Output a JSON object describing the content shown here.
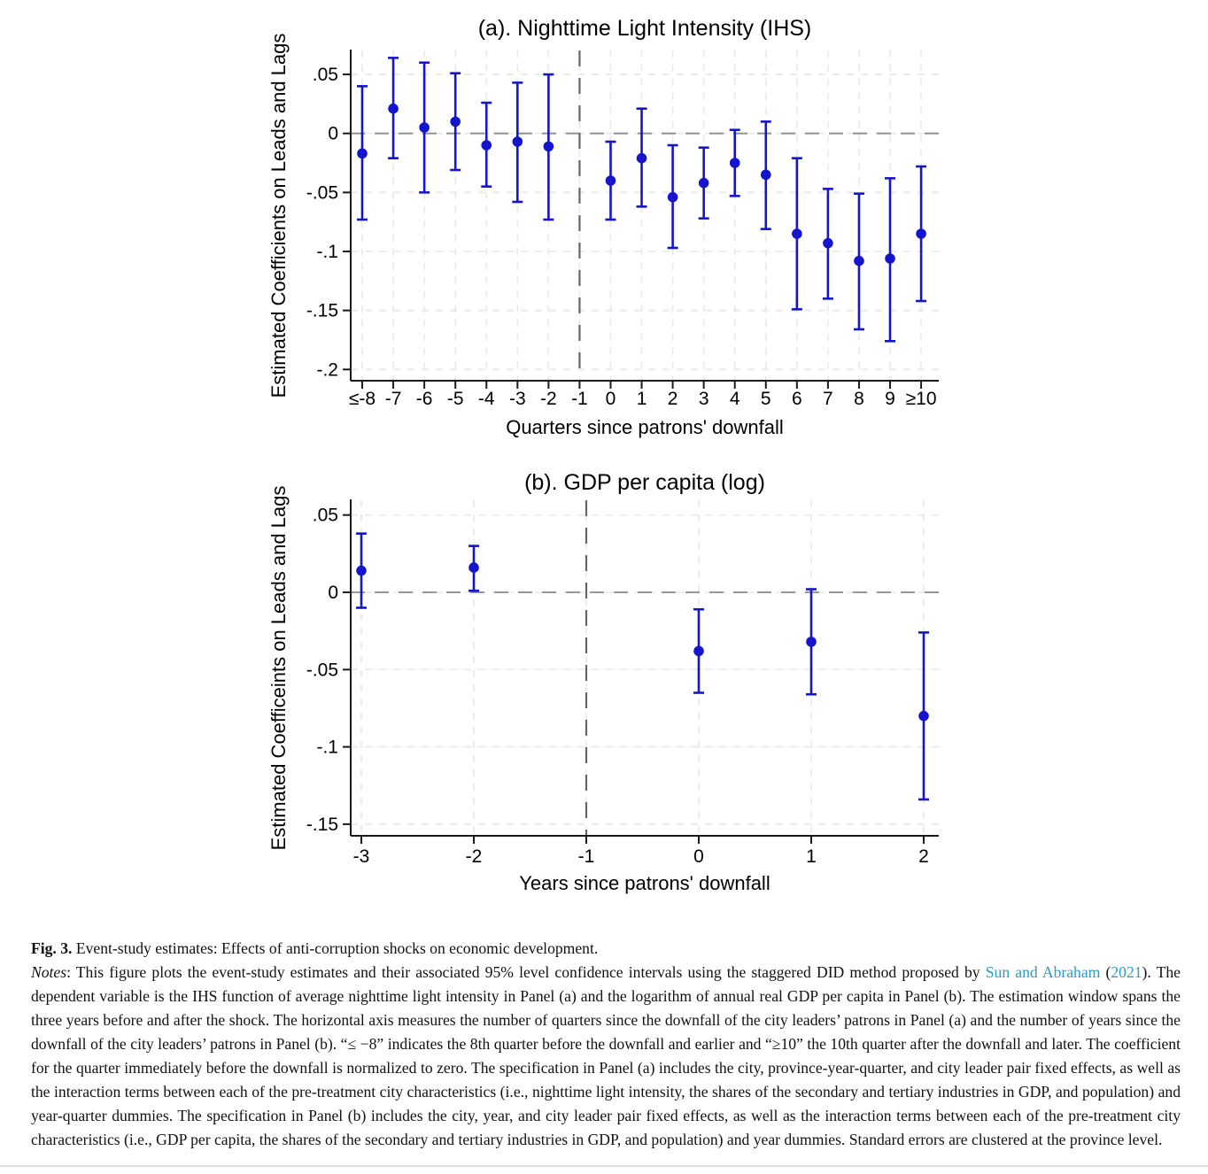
{
  "figure": {
    "accent_color": "#1515cd",
    "link_color": "#2d9bc1",
    "caption": {
      "fig_label": "Fig. 3.",
      "fig_title": " Event-study estimates: Effects of anti-corruption shocks on economic development.",
      "notes_label": "Notes",
      "notes_p1": ": This figure plots the event-study estimates and their associated 95% level confidence intervals using the staggered DID method proposed by ",
      "link_authors": "Sun and Abraham",
      "notes_p2": " (",
      "link_year": "2021",
      "notes_p3": "). The dependent variable is the IHS function of average nighttime light intensity in Panel (a) and the logarithm of annual real GDP per capita in Panel (b). The estimation window spans the three years before and after the shock. The horizontal axis measures the number of quarters since the downfall of the city leaders’ patrons in Panel (a) and the number of years since the downfall of the city leaders’ patrons in Panel (b). “≤ −8” indicates the 8th quarter before the downfall and earlier and “≥10” the 10th quarter after the downfall and later. The coefficient for the quarter immediately before the downfall is normalized to zero. The specification in Panel (a) includes the city, province-year-quarter, and city leader pair fixed effects, as well as the interaction terms between each of the pre-treatment city characteristics (i.e., nighttime light intensity, the shares of the secondary and tertiary industries in GDP, and population) and year-quarter dummies. The specification in Panel (b) includes the city, year, and city leader pair fixed effects, as well as the interaction terms between each of the pre-treatment city characteristics (i.e., GDP per capita, the shares of the secondary and tertiary industries in GDP, and population) and year dummies. Standard errors are clustered at the province level."
    }
  },
  "chart_data": [
    {
      "type": "scatter",
      "subtype": "event-study errorbar",
      "title": "(a). Nighttime Light Intensity (IHS)",
      "xlabel": "Quarters since patrons' downfall",
      "ylabel": "Estimated Coefficients on Leads and Lags",
      "ylim": [
        0.07,
        -0.21
      ],
      "grid": true,
      "ref_hline_value": 0,
      "ref_vline_category": "-1",
      "categories": [
        "≤-8",
        "-7",
        "-6",
        "-5",
        "-4",
        "-3",
        "-2",
        "-1",
        "0",
        "1",
        "2",
        "3",
        "4",
        "5",
        "6",
        "7",
        "8",
        "9",
        "≥10"
      ],
      "y_ticks": [
        {
          "v": 0.05,
          "t": ".05"
        },
        {
          "v": 0,
          "t": "0"
        },
        {
          "v": -0.05,
          "t": "-.05"
        },
        {
          "v": -0.1,
          "t": "-.1"
        },
        {
          "v": -0.15,
          "t": "-.15"
        },
        {
          "v": -0.2,
          "t": "-.2"
        }
      ],
      "points": [
        {
          "cat": "≤-8",
          "est": -0.017,
          "lo": -0.073,
          "hi": 0.04
        },
        {
          "cat": "-7",
          "est": 0.021,
          "lo": -0.021,
          "hi": 0.064
        },
        {
          "cat": "-6",
          "est": 0.005,
          "lo": -0.05,
          "hi": 0.06
        },
        {
          "cat": "-5",
          "est": 0.01,
          "lo": -0.031,
          "hi": 0.051
        },
        {
          "cat": "-4",
          "est": -0.01,
          "lo": -0.045,
          "hi": 0.026
        },
        {
          "cat": "-3",
          "est": -0.007,
          "lo": -0.058,
          "hi": 0.043
        },
        {
          "cat": "-2",
          "est": -0.011,
          "lo": -0.073,
          "hi": 0.05
        },
        {
          "cat": "0",
          "est": -0.04,
          "lo": -0.073,
          "hi": -0.007
        },
        {
          "cat": "1",
          "est": -0.021,
          "lo": -0.062,
          "hi": 0.021
        },
        {
          "cat": "2",
          "est": -0.054,
          "lo": -0.097,
          "hi": -0.01
        },
        {
          "cat": "3",
          "est": -0.042,
          "lo": -0.072,
          "hi": -0.012
        },
        {
          "cat": "4",
          "est": -0.025,
          "lo": -0.053,
          "hi": 0.003
        },
        {
          "cat": "5",
          "est": -0.035,
          "lo": -0.081,
          "hi": 0.01
        },
        {
          "cat": "6",
          "est": -0.085,
          "lo": -0.149,
          "hi": -0.021
        },
        {
          "cat": "7",
          "est": -0.093,
          "lo": -0.14,
          "hi": -0.047
        },
        {
          "cat": "8",
          "est": -0.108,
          "lo": -0.166,
          "hi": -0.051
        },
        {
          "cat": "9",
          "est": -0.106,
          "lo": -0.176,
          "hi": -0.038
        },
        {
          "cat": "≥10",
          "est": -0.085,
          "lo": -0.142,
          "hi": -0.028
        }
      ]
    },
    {
      "type": "scatter",
      "subtype": "event-study errorbar",
      "title": "(b). GDP per capita (log)",
      "xlabel": "Years since patrons' downfall",
      "ylabel": "Estimated Coefficeints on Leads and Lags",
      "ylim": [
        0.06,
        -0.16
      ],
      "grid": true,
      "ref_hline_value": 0,
      "ref_vline_category": "-1",
      "categories": [
        "-3",
        "-2",
        "-1",
        "0",
        "1",
        "2"
      ],
      "y_ticks": [
        {
          "v": 0.05,
          "t": ".05"
        },
        {
          "v": 0,
          "t": "0"
        },
        {
          "v": -0.05,
          "t": "-.05"
        },
        {
          "v": -0.1,
          "t": "-.1"
        },
        {
          "v": -0.15,
          "t": "-.15"
        }
      ],
      "points": [
        {
          "cat": "-3",
          "est": 0.014,
          "lo": -0.01,
          "hi": 0.038
        },
        {
          "cat": "-2",
          "est": 0.016,
          "lo": 0.001,
          "hi": 0.03
        },
        {
          "cat": "0",
          "est": -0.038,
          "lo": -0.065,
          "hi": -0.011
        },
        {
          "cat": "1",
          "est": -0.032,
          "lo": -0.066,
          "hi": 0.002
        },
        {
          "cat": "2",
          "est": -0.08,
          "lo": -0.134,
          "hi": -0.026
        }
      ]
    }
  ]
}
